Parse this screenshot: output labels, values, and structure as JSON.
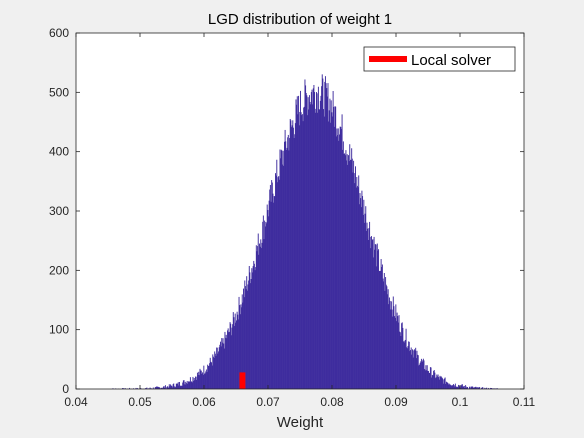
{
  "chart_data": {
    "type": "bar",
    "title": "LGD distribution of weight 1",
    "xlabel": "Weight",
    "ylabel": "",
    "xlim": [
      0.04,
      0.11
    ],
    "ylim": [
      0,
      600
    ],
    "xticks": [
      "0.04",
      "0.05",
      "0.06",
      "0.07",
      "0.08",
      "0.09",
      "0.1",
      "0.11"
    ],
    "yticks": [
      "0",
      "100",
      "200",
      "300",
      "400",
      "500",
      "600"
    ],
    "grid": false,
    "legend_position": "top-right",
    "series": [
      {
        "type": "histogram",
        "color": "#3f2d9e",
        "bin_start": 0.045,
        "bin_width": 0.0001,
        "bin_count": 610,
        "peak_weight": 0.0775,
        "peak_count": 545,
        "spread": 0.0075
      },
      {
        "name": "Local solver",
        "type": "bar",
        "color": "#ff0000",
        "x": 0.066,
        "value": 28
      }
    ],
    "legend": [
      {
        "label": "Local solver",
        "color": "#ff0000"
      }
    ]
  }
}
